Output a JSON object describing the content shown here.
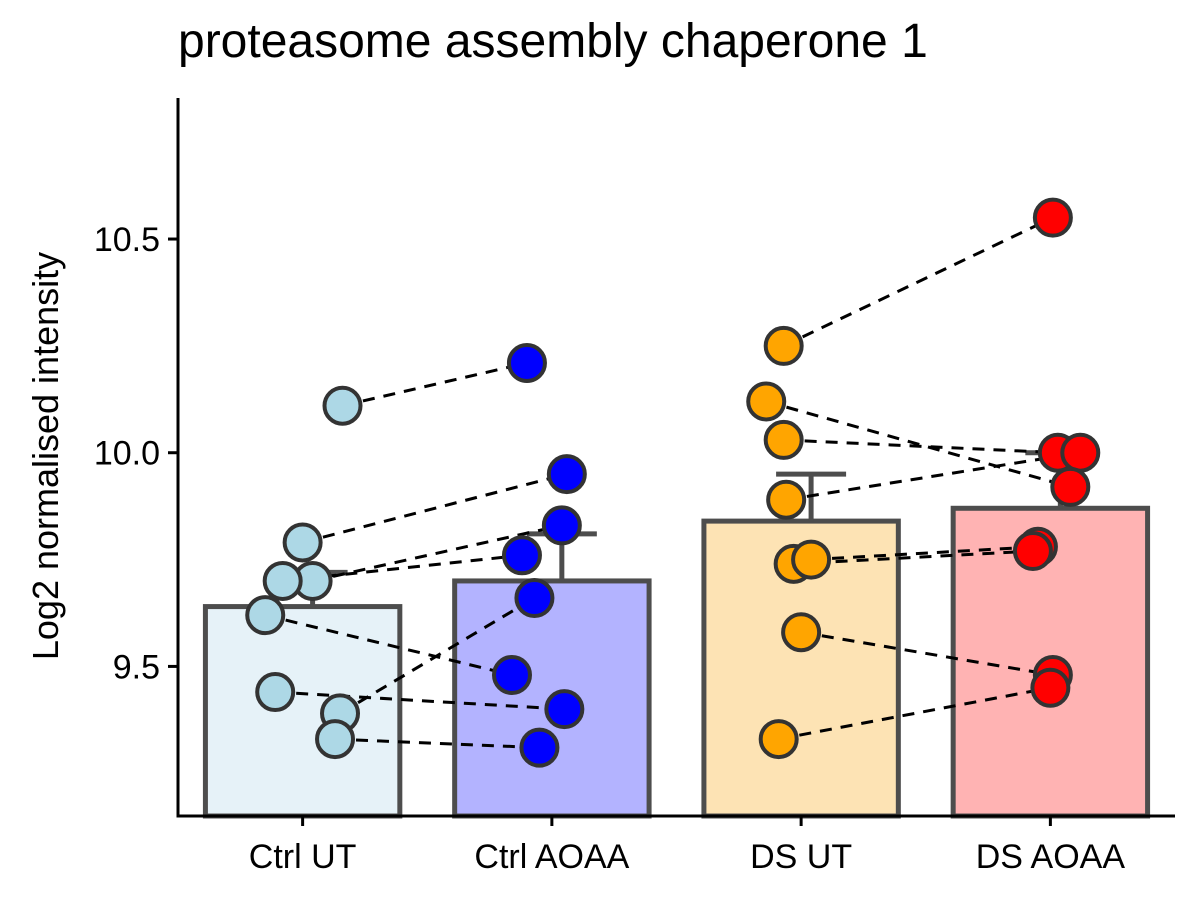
{
  "chart_data": {
    "type": "bar",
    "title": "proteasome assembly chaperone 1",
    "xlabel": "",
    "ylabel": "Log2 normalised intensity",
    "ylim": [
      9.15,
      10.83
    ],
    "yticks": [
      9.5,
      10.0,
      10.5
    ],
    "ytick_labels": [
      "9.5",
      "10.0",
      "10.5"
    ],
    "categories": [
      "Ctrl UT",
      "Ctrl AOAA",
      "DS UT",
      "DS AOAA"
    ],
    "values": [
      9.64,
      9.7,
      9.84,
      9.87
    ],
    "errors": [
      0.08,
      0.11,
      0.11,
      0.13
    ],
    "bar_colors": [
      "#E6F2F8",
      "#B3B3FF",
      "#FDE3B4",
      "#FFB3B3"
    ],
    "point_colors": [
      "#ADD8E6",
      "#0000FF",
      "#FFA500",
      "#FF0000"
    ],
    "points": [
      [
        {
          "x": 0.16,
          "y": 10.11
        },
        {
          "x": 0.0,
          "y": 9.79
        },
        {
          "x": 0.04,
          "y": 9.7
        },
        {
          "x": -0.08,
          "y": 9.7
        },
        {
          "x": -0.15,
          "y": 9.62
        },
        {
          "x": -0.11,
          "y": 9.44
        },
        {
          "x": 0.15,
          "y": 9.39
        },
        {
          "x": 0.13,
          "y": 9.33
        }
      ],
      [
        {
          "x": -0.1,
          "y": 10.21
        },
        {
          "x": 0.06,
          "y": 9.95
        },
        {
          "x": 0.04,
          "y": 9.83
        },
        {
          "x": -0.12,
          "y": 9.76
        },
        {
          "x": -0.07,
          "y": 9.66
        },
        {
          "x": -0.16,
          "y": 9.48
        },
        {
          "x": 0.05,
          "y": 9.4
        },
        {
          "x": -0.05,
          "y": 9.31
        }
      ],
      [
        {
          "x": -0.07,
          "y": 10.25
        },
        {
          "x": -0.14,
          "y": 10.12
        },
        {
          "x": -0.07,
          "y": 10.03
        },
        {
          "x": -0.06,
          "y": 9.89
        },
        {
          "x": -0.03,
          "y": 9.74
        },
        {
          "x": 0.04,
          "y": 9.75
        },
        {
          "x": 0.0,
          "y": 9.58
        },
        {
          "x": -0.09,
          "y": 9.33
        }
      ],
      [
        {
          "x": 0.01,
          "y": 10.55
        },
        {
          "x": 0.03,
          "y": 10.0
        },
        {
          "x": 0.12,
          "y": 10.0
        },
        {
          "x": 0.08,
          "y": 9.92
        },
        {
          "x": -0.05,
          "y": 9.78
        },
        {
          "x": -0.07,
          "y": 9.77
        },
        {
          "x": 0.01,
          "y": 9.48
        },
        {
          "x": 0.0,
          "y": 9.45
        }
      ]
    ],
    "pairs": [
      {
        "from": [
          0,
          0
        ],
        "to": [
          1,
          0
        ]
      },
      {
        "from": [
          0,
          1
        ],
        "to": [
          1,
          1
        ]
      },
      {
        "from": [
          0,
          2
        ],
        "to": [
          1,
          2
        ]
      },
      {
        "from": [
          0,
          3
        ],
        "to": [
          1,
          3
        ]
      },
      {
        "from": [
          0,
          4
        ],
        "to": [
          1,
          5
        ]
      },
      {
        "from": [
          0,
          5
        ],
        "to": [
          1,
          6
        ]
      },
      {
        "from": [
          0,
          6
        ],
        "to": [
          1,
          4
        ]
      },
      {
        "from": [
          0,
          7
        ],
        "to": [
          1,
          7
        ]
      },
      {
        "from": [
          2,
          0
        ],
        "to": [
          3,
          0
        ]
      },
      {
        "from": [
          2,
          1
        ],
        "to": [
          3,
          3
        ]
      },
      {
        "from": [
          2,
          2
        ],
        "to": [
          3,
          1
        ]
      },
      {
        "from": [
          2,
          3
        ],
        "to": [
          3,
          2
        ]
      },
      {
        "from": [
          2,
          5
        ],
        "to": [
          3,
          4
        ]
      },
      {
        "from": [
          2,
          4
        ],
        "to": [
          3,
          5
        ]
      },
      {
        "from": [
          2,
          6
        ],
        "to": [
          3,
          6
        ]
      },
      {
        "from": [
          2,
          7
        ],
        "to": [
          3,
          7
        ]
      }
    ]
  }
}
